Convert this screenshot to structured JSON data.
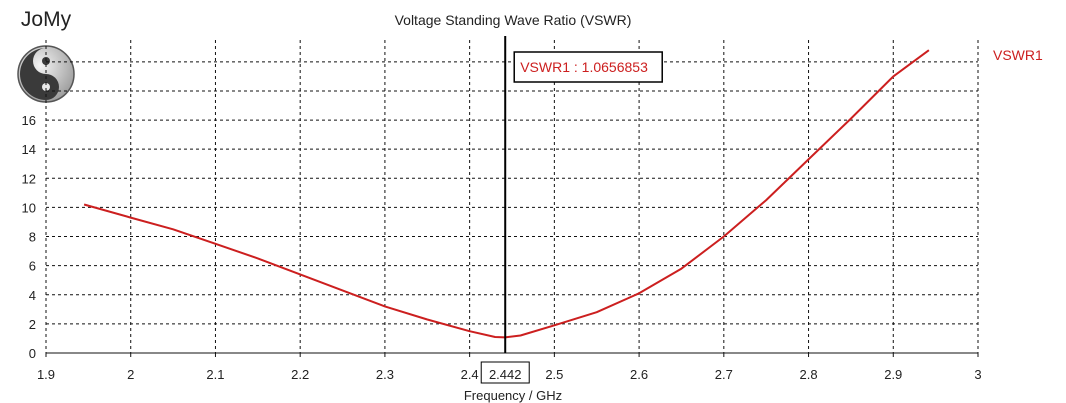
{
  "logo": {
    "text": "JoMy",
    "icon": "yin-yang-icon"
  },
  "chart_data": {
    "type": "line",
    "title": "Voltage Standing Wave Ratio (VSWR)",
    "xlabel": "Frequency / GHz",
    "ylabel": "",
    "xlim": [
      1.9,
      3.0
    ],
    "ylim": [
      0,
      21.5
    ],
    "xticks": [
      1.9,
      2,
      2.1,
      2.2,
      2.3,
      2.4,
      2.5,
      2.6,
      2.7,
      2.8,
      2.9,
      3
    ],
    "xtick_labels": [
      "1.9",
      "2",
      "2.1",
      "2.2",
      "2.3",
      "2.4",
      "2.5",
      "2.6",
      "2.7",
      "2.8",
      "2.9",
      "3"
    ],
    "yticks": [
      0,
      2,
      4,
      6,
      8,
      10,
      12,
      14,
      16
    ],
    "ytick_labels": [
      "0",
      "2",
      "4",
      "6",
      "8",
      "10",
      "12",
      "14",
      "16"
    ],
    "grid": true,
    "series": [
      {
        "name": "VSWR1",
        "color": "#cc1f1f",
        "x": [
          1.945,
          2.0,
          2.05,
          2.1,
          2.15,
          2.2,
          2.25,
          2.3,
          2.35,
          2.4,
          2.43,
          2.442,
          2.46,
          2.5,
          2.55,
          2.6,
          2.65,
          2.7,
          2.75,
          2.8,
          2.85,
          2.9,
          2.942
        ],
        "y": [
          10.2,
          9.3,
          8.5,
          7.5,
          6.5,
          5.4,
          4.3,
          3.2,
          2.3,
          1.5,
          1.1,
          1.07,
          1.2,
          1.9,
          2.8,
          4.1,
          5.8,
          8.0,
          10.5,
          13.3,
          16.1,
          19.0,
          20.8
        ]
      }
    ],
    "marker": {
      "x": 2.442,
      "x_label": "2.442",
      "label": "VSWR1 : 1.0656853",
      "value": 1.0656853
    },
    "legend": {
      "entries": [
        "VSWR1"
      ],
      "placement": "top-right"
    }
  }
}
